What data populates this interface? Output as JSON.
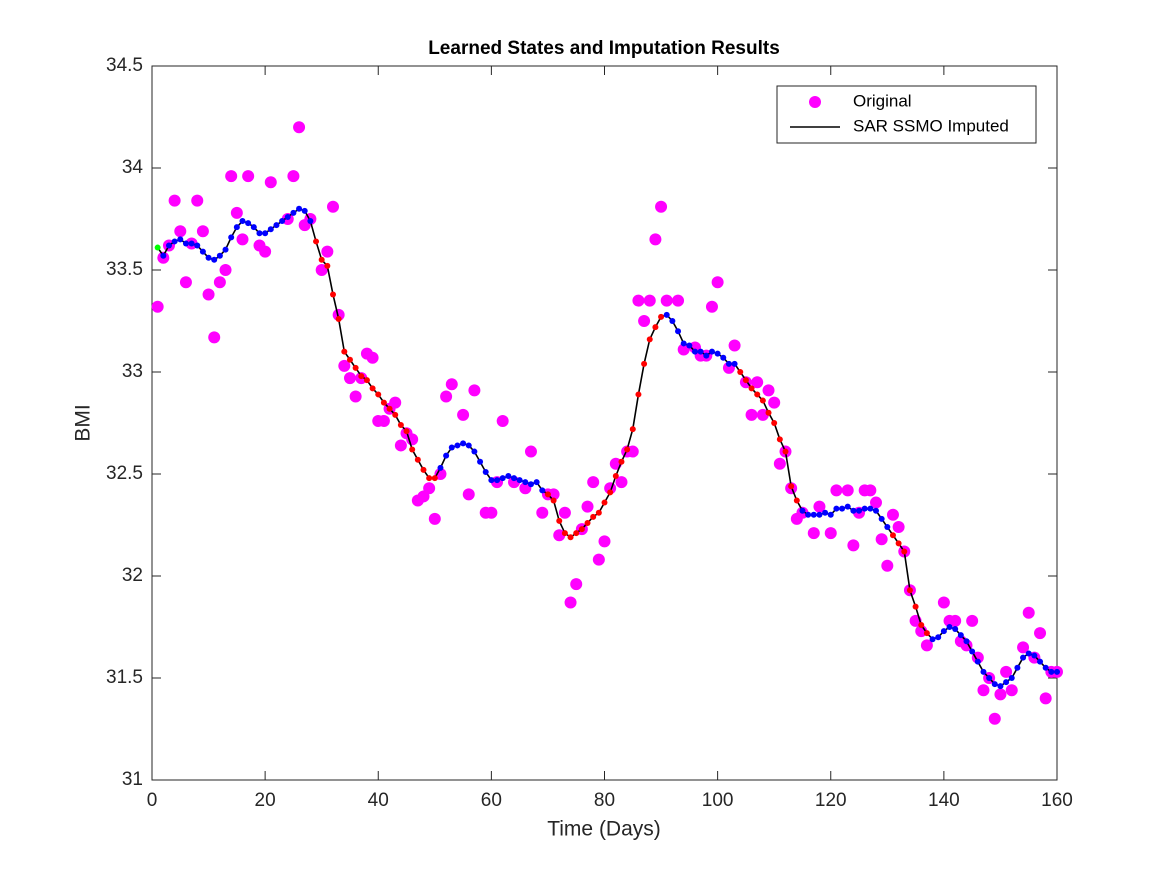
{
  "chart_data": {
    "type": "scatter-line",
    "title": "Learned States and Imputation Results",
    "xlabel": "Time (Days)",
    "ylabel": "BMI",
    "xlim": [
      0,
      160
    ],
    "ylim": [
      31,
      34.5
    ],
    "xticks": [
      0,
      20,
      40,
      60,
      80,
      100,
      120,
      140,
      160
    ],
    "yticks": [
      31,
      31.5,
      32,
      32.5,
      33,
      33.5,
      34,
      34.5
    ],
    "grid": false,
    "legend": "northeast",
    "series": [
      {
        "name": "Original",
        "color": "#ff00ff",
        "x": [
          1,
          2,
          3,
          4,
          5,
          6,
          7,
          8,
          9,
          10,
          11,
          12,
          13,
          14,
          15,
          16,
          17,
          19,
          20,
          21,
          24,
          25,
          26,
          27,
          28,
          30,
          31,
          32,
          33,
          34,
          35,
          36,
          37,
          38,
          39,
          40,
          41,
          42,
          43,
          44,
          45,
          46,
          47,
          48,
          49,
          50,
          51,
          52,
          53,
          55,
          56,
          57,
          59,
          60,
          61,
          62,
          64,
          66,
          67,
          69,
          70,
          71,
          72,
          73,
          74,
          75,
          76,
          77,
          78,
          79,
          80,
          81,
          82,
          83,
          84,
          85,
          86,
          87,
          88,
          89,
          90,
          91,
          93,
          94,
          96,
          97,
          98,
          99,
          100,
          102,
          103,
          105,
          106,
          107,
          108,
          109,
          110,
          111,
          112,
          113,
          114,
          115,
          117,
          118,
          120,
          121,
          123,
          124,
          125,
          126,
          127,
          128,
          129,
          130,
          131,
          132,
          133,
          134,
          135,
          136,
          137,
          140,
          141,
          142,
          143,
          144,
          145,
          146,
          147,
          148,
          149,
          150,
          151,
          152,
          154,
          155,
          156,
          157,
          158,
          159,
          160
        ],
        "values": [
          33.32,
          33.56,
          33.62,
          33.84,
          33.69,
          33.44,
          33.63,
          33.84,
          33.69,
          33.38,
          33.17,
          33.44,
          33.5,
          33.96,
          33.78,
          33.65,
          33.96,
          33.62,
          33.59,
          33.93,
          33.75,
          33.96,
          34.2,
          33.72,
          33.75,
          33.5,
          33.59,
          33.81,
          33.28,
          33.03,
          32.97,
          32.88,
          32.97,
          33.09,
          33.07,
          32.76,
          32.76,
          32.82,
          32.85,
          32.64,
          32.7,
          32.67,
          32.37,
          32.39,
          32.43,
          32.28,
          32.5,
          32.88,
          32.94,
          32.79,
          32.4,
          32.91,
          32.31,
          32.31,
          32.46,
          32.76,
          32.46,
          32.43,
          32.61,
          32.31,
          32.4,
          32.4,
          32.2,
          32.31,
          31.87,
          31.96,
          32.23,
          32.34,
          32.46,
          32.08,
          32.17,
          32.43,
          32.55,
          32.46,
          32.61,
          32.61,
          33.35,
          33.25,
          33.35,
          33.65,
          33.81,
          33.35,
          33.35,
          33.11,
          33.12,
          33.08,
          33.08,
          33.32,
          33.44,
          33.02,
          33.13,
          32.95,
          32.79,
          32.95,
          32.79,
          32.91,
          32.85,
          32.55,
          32.61,
          32.43,
          32.28,
          32.31,
          32.21,
          32.34,
          32.21,
          32.42,
          32.42,
          32.15,
          32.31,
          32.42,
          32.42,
          32.36,
          32.18,
          32.05,
          32.3,
          32.24,
          32.12,
          31.93,
          31.78,
          31.73,
          31.66,
          31.87,
          31.78,
          31.78,
          31.68,
          31.66,
          31.78,
          31.6,
          31.44,
          31.5,
          31.3,
          31.42,
          31.53,
          31.44,
          31.65,
          31.82,
          31.6,
          31.72,
          31.4,
          31.53,
          31.53
        ]
      },
      {
        "name": "SAR SSMO Imputed",
        "color": "#000000",
        "x": [
          1,
          2,
          3,
          4,
          5,
          6,
          7,
          8,
          9,
          10,
          11,
          12,
          13,
          14,
          15,
          16,
          17,
          18,
          19,
          20,
          21,
          22,
          23,
          24,
          25,
          26,
          27,
          28,
          29,
          30,
          31,
          32,
          33,
          34,
          35,
          36,
          37,
          38,
          39,
          40,
          41,
          42,
          43,
          44,
          45,
          46,
          47,
          48,
          49,
          50,
          51,
          52,
          53,
          54,
          55,
          56,
          57,
          58,
          59,
          60,
          61,
          62,
          63,
          64,
          65,
          66,
          67,
          68,
          69,
          70,
          71,
          72,
          73,
          74,
          75,
          76,
          77,
          78,
          79,
          80,
          81,
          82,
          83,
          84,
          85,
          86,
          87,
          88,
          89,
          90,
          91,
          92,
          93,
          94,
          95,
          96,
          97,
          98,
          99,
          100,
          101,
          102,
          103,
          104,
          105,
          106,
          107,
          108,
          109,
          110,
          111,
          112,
          113,
          114,
          115,
          116,
          117,
          118,
          119,
          120,
          121,
          122,
          123,
          124,
          125,
          126,
          127,
          128,
          129,
          130,
          131,
          132,
          133,
          134,
          135,
          136,
          137,
          138,
          139,
          140,
          141,
          142,
          143,
          144,
          145,
          146,
          147,
          148,
          149,
          150,
          151,
          152,
          153,
          154,
          155,
          156,
          157,
          158,
          159,
          160
        ],
        "values": [
          33.61,
          33.57,
          33.62,
          33.64,
          33.65,
          33.63,
          33.63,
          33.62,
          33.59,
          33.56,
          33.55,
          33.57,
          33.6,
          33.66,
          33.71,
          33.74,
          33.73,
          33.71,
          33.68,
          33.68,
          33.7,
          33.72,
          33.74,
          33.76,
          33.78,
          33.8,
          33.79,
          33.74,
          33.64,
          33.55,
          33.52,
          33.38,
          33.26,
          33.1,
          33.06,
          33.02,
          32.98,
          32.96,
          32.92,
          32.89,
          32.85,
          32.82,
          32.79,
          32.74,
          32.71,
          32.62,
          32.57,
          32.52,
          32.48,
          32.48,
          32.53,
          32.59,
          32.63,
          32.64,
          32.65,
          32.64,
          32.61,
          32.56,
          32.51,
          32.47,
          32.47,
          32.48,
          32.49,
          32.48,
          32.47,
          32.46,
          32.45,
          32.46,
          32.42,
          32.4,
          32.37,
          32.27,
          32.21,
          32.19,
          32.21,
          32.23,
          32.26,
          32.29,
          32.31,
          32.36,
          32.41,
          32.49,
          32.56,
          32.62,
          32.72,
          32.89,
          33.04,
          33.16,
          33.22,
          33.27,
          33.28,
          33.25,
          33.2,
          33.14,
          33.13,
          33.1,
          33.1,
          33.08,
          33.1,
          33.09,
          33.07,
          33.04,
          33.04,
          33.0,
          32.96,
          32.92,
          32.89,
          32.86,
          32.8,
          32.75,
          32.67,
          32.61,
          32.44,
          32.37,
          32.32,
          32.3,
          32.3,
          32.3,
          32.31,
          32.3,
          32.33,
          32.33,
          32.34,
          32.32,
          32.32,
          32.33,
          32.33,
          32.32,
          32.28,
          32.24,
          32.2,
          32.16,
          32.12,
          31.93,
          31.85,
          31.76,
          31.72,
          31.69,
          31.7,
          31.73,
          31.75,
          31.74,
          31.71,
          31.68,
          31.63,
          31.58,
          31.53,
          31.5,
          31.47,
          31.46,
          31.48,
          31.5,
          31.55,
          31.6,
          31.62,
          31.61,
          31.58,
          31.55,
          31.53,
          31.53
        ],
        "marker_colors": [
          "lime",
          "blue",
          "blue",
          "blue",
          "blue",
          "blue",
          "blue",
          "blue",
          "blue",
          "blue",
          "blue",
          "blue",
          "blue",
          "blue",
          "blue",
          "blue",
          "blue",
          "blue",
          "blue",
          "blue",
          "blue",
          "blue",
          "blue",
          "blue",
          "blue",
          "blue",
          "blue",
          "blue",
          "red",
          "red",
          "red",
          "red",
          "red",
          "red",
          "red",
          "red",
          "red",
          "red",
          "red",
          "red",
          "red",
          "red",
          "red",
          "red",
          "red",
          "red",
          "red",
          "red",
          "red",
          "red",
          "blue",
          "blue",
          "blue",
          "blue",
          "blue",
          "blue",
          "blue",
          "blue",
          "blue",
          "blue",
          "blue",
          "blue",
          "blue",
          "blue",
          "blue",
          "blue",
          "blue",
          "blue",
          "blue",
          "red",
          "red",
          "red",
          "red",
          "red",
          "red",
          "red",
          "red",
          "red",
          "red",
          "red",
          "red",
          "red",
          "red",
          "red",
          "red",
          "red",
          "red",
          "red",
          "red",
          "red",
          "blue",
          "blue",
          "blue",
          "blue",
          "blue",
          "blue",
          "blue",
          "blue",
          "blue",
          "blue",
          "blue",
          "blue",
          "blue",
          "red",
          "red",
          "red",
          "red",
          "red",
          "red",
          "red",
          "red",
          "red",
          "red",
          "red",
          "blue",
          "blue",
          "blue",
          "blue",
          "blue",
          "blue",
          "blue",
          "blue",
          "blue",
          "blue",
          "blue",
          "blue",
          "blue",
          "blue",
          "blue",
          "blue",
          "red",
          "red",
          "red",
          "red",
          "red",
          "red",
          "red",
          "blue",
          "blue",
          "blue",
          "blue",
          "blue",
          "blue",
          "blue",
          "blue",
          "blue",
          "blue",
          "blue",
          "blue",
          "blue",
          "blue",
          "blue",
          "blue",
          "blue",
          "blue",
          "blue",
          "blue",
          "blue",
          "blue",
          "blue"
        ]
      }
    ]
  }
}
